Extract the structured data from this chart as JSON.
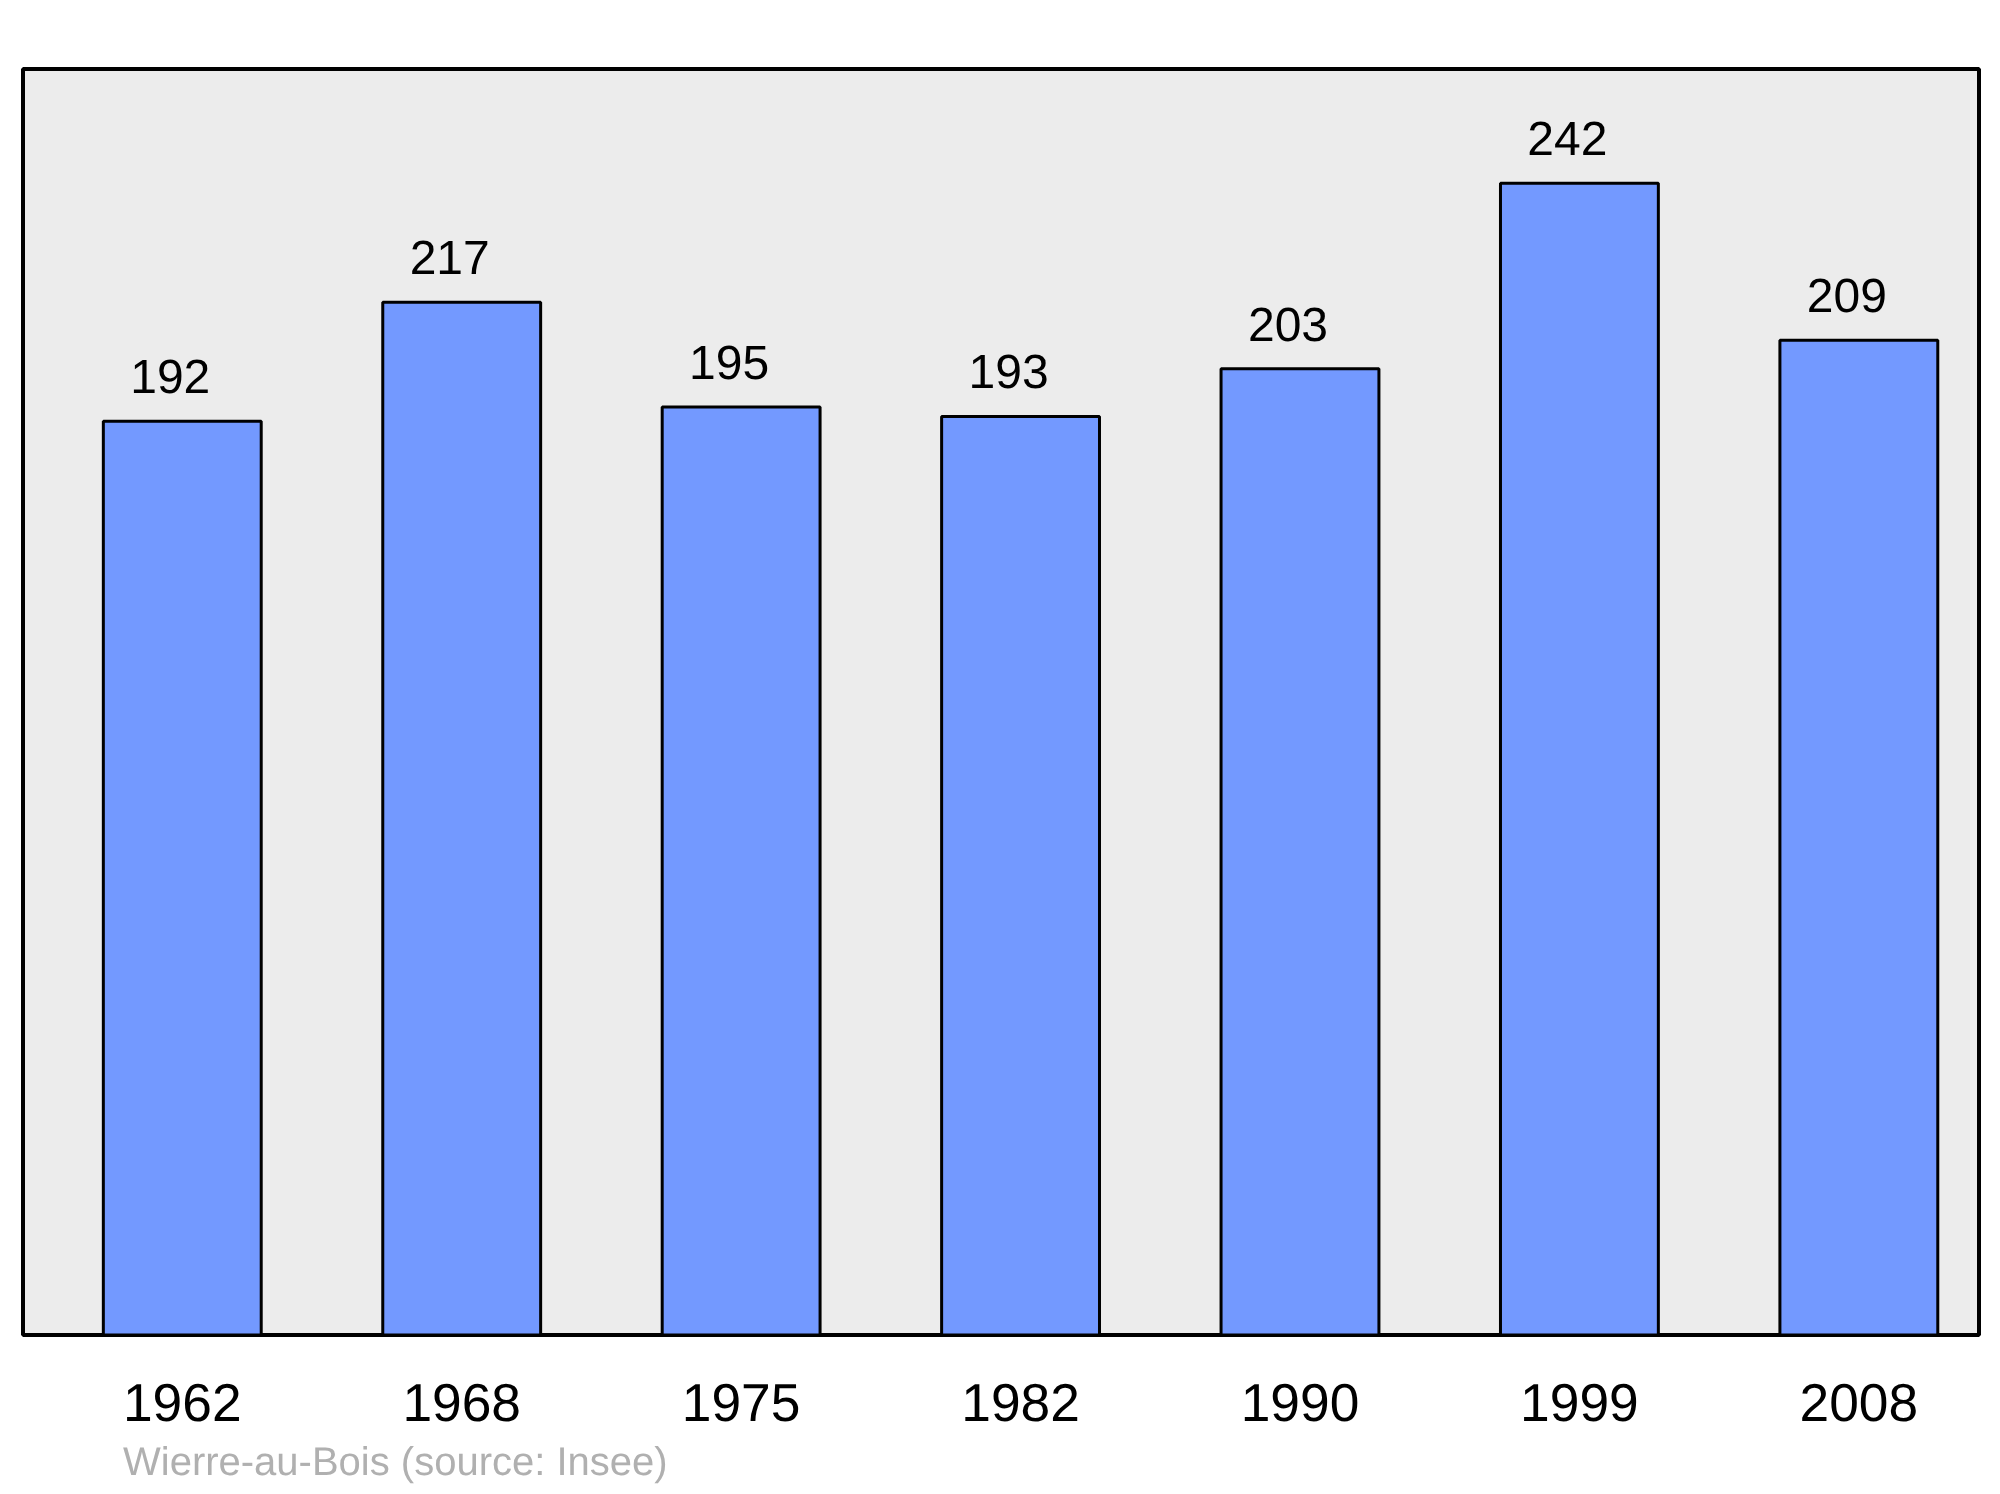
{
  "chart_data": {
    "type": "bar",
    "categories": [
      "1962",
      "1968",
      "1975",
      "1982",
      "1990",
      "1999",
      "2008"
    ],
    "values": [
      192,
      217,
      195,
      193,
      203,
      242,
      209
    ],
    "color": "#7399ff",
    "ylim": [
      0,
      266
    ],
    "data_labels": true,
    "annotations": [
      "Wierre-au-Bois    (source: Insee)"
    ]
  }
}
